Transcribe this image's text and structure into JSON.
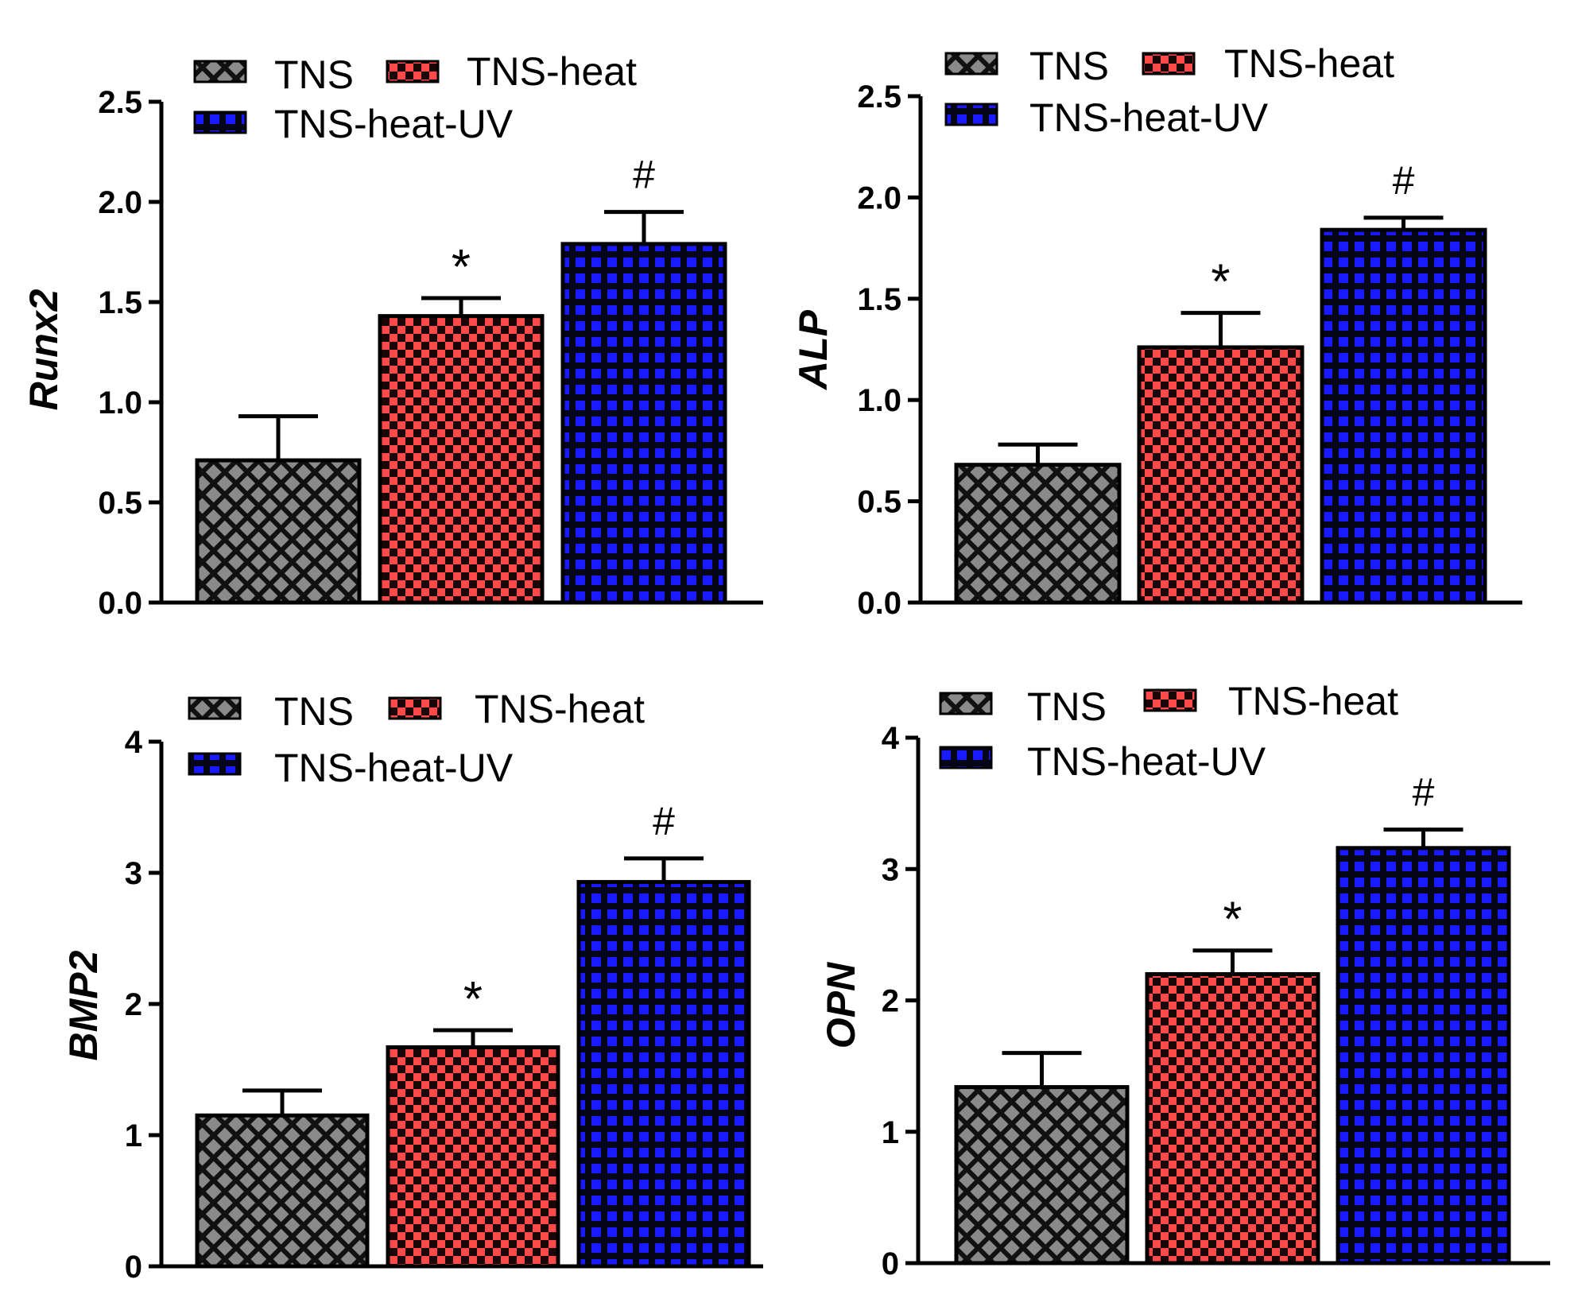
{
  "legend_labels": [
    "TNS",
    "TNS-heat",
    "TNS-heat-UV"
  ],
  "series_colors": {
    "TNS": "#555555",
    "TNS-heat": "#e8393f",
    "TNS-heat-UV": "#1a1ae6"
  },
  "chart_data": [
    {
      "type": "bar",
      "ylabel": "Runx2",
      "categories": [
        "TNS",
        "TNS-heat",
        "TNS-heat-UV"
      ],
      "values": [
        0.71,
        1.43,
        1.79
      ],
      "errors": [
        0.22,
        0.09,
        0.16
      ],
      "annotations": [
        "",
        "*",
        "#"
      ],
      "ylim": [
        0,
        2.5
      ],
      "yticks": [
        0.0,
        0.5,
        1.0,
        1.5,
        2.0,
        2.5
      ],
      "ytick_labels": [
        "0.0",
        "0.5",
        "1.0",
        "1.5",
        "2.0",
        "2.5"
      ]
    },
    {
      "type": "bar",
      "ylabel": "ALP",
      "categories": [
        "TNS",
        "TNS-heat",
        "TNS-heat-UV"
      ],
      "values": [
        0.68,
        1.26,
        1.84
      ],
      "errors": [
        0.1,
        0.17,
        0.06
      ],
      "annotations": [
        "",
        "*",
        "#"
      ],
      "ylim": [
        0,
        2.5
      ],
      "yticks": [
        0.0,
        0.5,
        1.0,
        1.5,
        2.0,
        2.5
      ],
      "ytick_labels": [
        "0.0",
        "0.5",
        "1.0",
        "1.5",
        "2.0",
        "2.5"
      ]
    },
    {
      "type": "bar",
      "ylabel": "BMP2",
      "categories": [
        "TNS",
        "TNS-heat",
        "TNS-heat-UV"
      ],
      "values": [
        1.15,
        1.67,
        2.93
      ],
      "errors": [
        0.19,
        0.13,
        0.18
      ],
      "annotations": [
        "",
        "*",
        "#"
      ],
      "ylim": [
        0,
        4
      ],
      "yticks": [
        0,
        1,
        2,
        3,
        4
      ],
      "ytick_labels": [
        "0",
        "1",
        "2",
        "3",
        "4"
      ]
    },
    {
      "type": "bar",
      "ylabel": "OPN",
      "categories": [
        "TNS",
        "TNS-heat",
        "TNS-heat-UV"
      ],
      "values": [
        1.34,
        2.2,
        3.16
      ],
      "errors": [
        0.26,
        0.18,
        0.14
      ],
      "annotations": [
        "",
        "*",
        "#"
      ],
      "ylim": [
        0,
        4
      ],
      "yticks": [
        0,
        1,
        2,
        3,
        4
      ],
      "ytick_labels": [
        "0",
        "1",
        "2",
        "3",
        "4"
      ]
    }
  ]
}
